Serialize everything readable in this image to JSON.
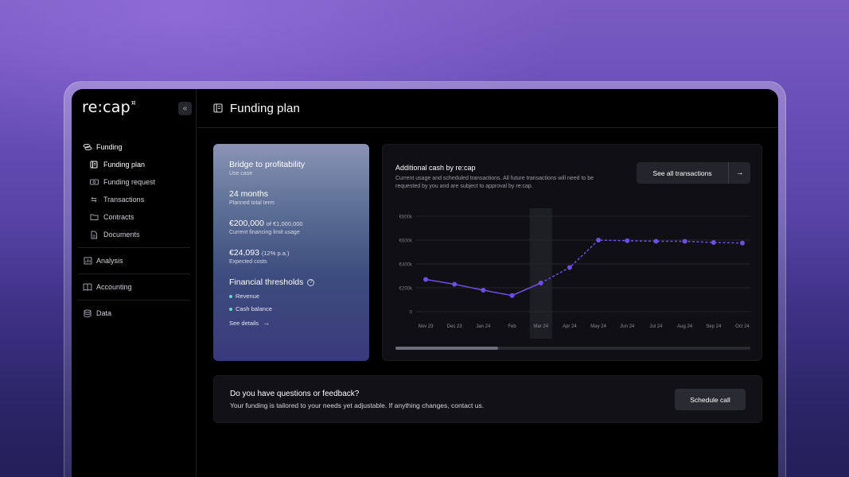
{
  "app": {
    "logo": "re:cap",
    "logo_mark": "¤",
    "collapse_icon": "double-chevron-left-icon"
  },
  "sidebar": {
    "funding": {
      "label": "Funding",
      "icon": "coins-icon"
    },
    "sub_items": [
      {
        "label": "Funding plan",
        "icon": "document-icon",
        "active": true
      },
      {
        "label": "Funding request",
        "icon": "banknote-icon"
      },
      {
        "label": "Transactions",
        "icon": "arrows-exchange-icon"
      },
      {
        "label": "Contracts",
        "icon": "folder-icon"
      },
      {
        "label": "Documents",
        "icon": "file-icon"
      }
    ],
    "sections": [
      {
        "label": "Analysis",
        "icon": "chart-icon"
      },
      {
        "label": "Accounting",
        "icon": "book-icon"
      },
      {
        "label": "Data",
        "icon": "database-icon"
      }
    ]
  },
  "header": {
    "title": "Funding plan"
  },
  "summary": {
    "use_case": {
      "value": "Bridge to profitability",
      "label": "Use case"
    },
    "term": {
      "value": "24 months",
      "label": "Planned total term"
    },
    "usage": {
      "value": "€200,000",
      "suffix": "of €1,000,000",
      "label": "Current financing limit usage"
    },
    "costs": {
      "value": "€24,093",
      "suffix": "(12% p.a.)",
      "label": "Expected costs"
    },
    "thresholds": {
      "title": "Financial thresholds",
      "items": [
        "Revenue",
        "Cash balance"
      ],
      "see_details": "See details"
    }
  },
  "chart_card": {
    "title": "Additional cash by re:cap",
    "description": "Current usage and scheduled transactions. All future transactions will need to be requested by you and are subject to approval by re:cap.",
    "button_label": "See all transactions",
    "scroll_fraction": 0.29
  },
  "chart_data": {
    "type": "line",
    "categories": [
      "Nov 23",
      "Dec 23",
      "Jan 24",
      "Feb",
      "Mar 24",
      "Apr 24",
      "May 24",
      "Jun 24",
      "Jul 24",
      "Aug 24",
      "Sep 24",
      "Oct 24"
    ],
    "series": [
      {
        "values": [
          270000,
          230000,
          180000,
          135000,
          240000,
          370000,
          600000,
          595000,
          590000,
          590000,
          580000,
          575000
        ]
      }
    ],
    "solid_until_index": 4,
    "highlight_category": "Mar 24",
    "y_ticks": [
      "0",
      "€200k",
      "€400k",
      "€600k",
      "€800k"
    ],
    "ylim": [
      0,
      800000
    ],
    "color": "#6d4ee6",
    "grid": true
  },
  "feedback": {
    "title": "Do you have questions or feedback?",
    "text": "Your funding is tailored to your needs yet adjustable. If anything changes, contact us.",
    "button_label": "Schedule call"
  }
}
